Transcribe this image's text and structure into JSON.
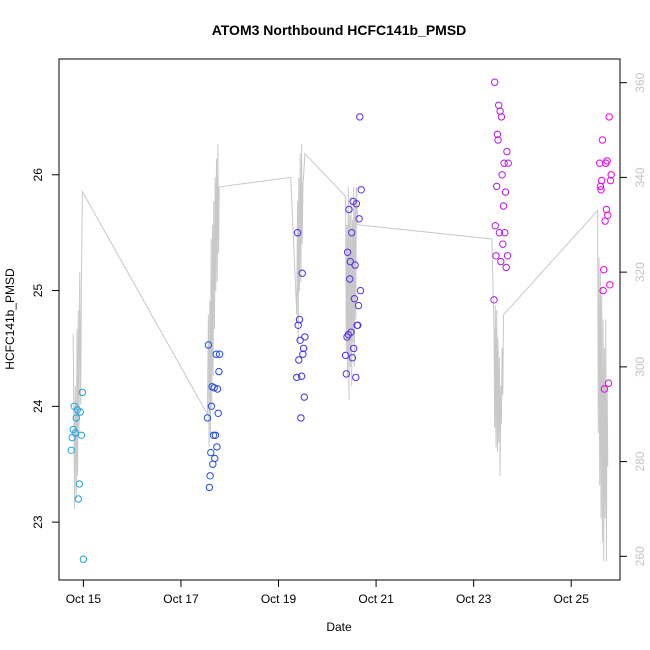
{
  "chart_data": {
    "type": "scatter",
    "title": "ATOM3 Northbound HCFC141b_PMSD",
    "xlabel": "Date",
    "ylabel": "HCFC141b_PMSD",
    "xlim": [
      "2016-10-14T12:00",
      "2016-10-26T00:00"
    ],
    "ylim": [
      22.5,
      27.0
    ],
    "y2lim": [
      255,
      365
    ],
    "x_ticks": [
      "Oct 15",
      "Oct 17",
      "Oct 19",
      "Oct 21",
      "Oct 23",
      "Oct 25"
    ],
    "x_tick_dates": [
      "2016-10-15T00:00",
      "2016-10-17T00:00",
      "2016-10-19T00:00",
      "2016-10-21T00:00",
      "2016-10-23T00:00",
      "2016-10-25T00:00"
    ],
    "y_ticks": [
      23,
      24,
      25,
      26
    ],
    "y2_ticks": [
      260,
      280,
      300,
      320,
      340,
      360
    ],
    "grid": false,
    "point_color_gradient": [
      "#1fa9e0",
      "#2233ee",
      "#8a2be2",
      "#ee00ee"
    ],
    "line_color": "#c8c8c8",
    "points": [
      {
        "x": "2016-10-14T18:00",
        "y": 23.62
      },
      {
        "x": "2016-10-14T18:30",
        "y": 23.73
      },
      {
        "x": "2016-10-14T19:00",
        "y": 23.8
      },
      {
        "x": "2016-10-14T19:30",
        "y": 24.0
      },
      {
        "x": "2016-10-14T20:00",
        "y": 23.77
      },
      {
        "x": "2016-10-14T20:30",
        "y": 23.9
      },
      {
        "x": "2016-10-14T21:00",
        "y": 23.97
      },
      {
        "x": "2016-10-14T21:30",
        "y": 23.2
      },
      {
        "x": "2016-10-14T22:00",
        "y": 23.33
      },
      {
        "x": "2016-10-14T22:30",
        "y": 23.95
      },
      {
        "x": "2016-10-14T23:00",
        "y": 23.75
      },
      {
        "x": "2016-10-14T23:30",
        "y": 24.12
      },
      {
        "x": "2016-10-15T00:00",
        "y": 22.68
      },
      {
        "x": "2016-10-17T13:00",
        "y": 23.9
      },
      {
        "x": "2016-10-17T13:30",
        "y": 24.53
      },
      {
        "x": "2016-10-17T14:00",
        "y": 23.3
      },
      {
        "x": "2016-10-17T14:20",
        "y": 23.4
      },
      {
        "x": "2016-10-17T14:40",
        "y": 23.6
      },
      {
        "x": "2016-10-17T15:00",
        "y": 24.0
      },
      {
        "x": "2016-10-17T15:20",
        "y": 24.17
      },
      {
        "x": "2016-10-17T15:40",
        "y": 23.5
      },
      {
        "x": "2016-10-17T16:00",
        "y": 23.75
      },
      {
        "x": "2016-10-17T16:20",
        "y": 24.16
      },
      {
        "x": "2016-10-17T16:40",
        "y": 23.55
      },
      {
        "x": "2016-10-17T17:00",
        "y": 23.75
      },
      {
        "x": "2016-10-17T17:20",
        "y": 24.45
      },
      {
        "x": "2016-10-17T17:40",
        "y": 23.65
      },
      {
        "x": "2016-10-17T18:00",
        "y": 24.15
      },
      {
        "x": "2016-10-17T18:20",
        "y": 23.94
      },
      {
        "x": "2016-10-17T18:40",
        "y": 24.3
      },
      {
        "x": "2016-10-17T19:00",
        "y": 24.45
      },
      {
        "x": "2016-10-19T09:00",
        "y": 24.25
      },
      {
        "x": "2016-10-19T09:20",
        "y": 25.5
      },
      {
        "x": "2016-10-19T09:40",
        "y": 24.7
      },
      {
        "x": "2016-10-19T10:00",
        "y": 24.4
      },
      {
        "x": "2016-10-19T10:20",
        "y": 24.75
      },
      {
        "x": "2016-10-19T10:40",
        "y": 24.57
      },
      {
        "x": "2016-10-19T11:00",
        "y": 23.9
      },
      {
        "x": "2016-10-19T11:20",
        "y": 24.26
      },
      {
        "x": "2016-10-19T11:40",
        "y": 25.15
      },
      {
        "x": "2016-10-19T12:00",
        "y": 24.45
      },
      {
        "x": "2016-10-19T12:20",
        "y": 24.5
      },
      {
        "x": "2016-10-19T12:40",
        "y": 24.08
      },
      {
        "x": "2016-10-19T13:00",
        "y": 24.6
      },
      {
        "x": "2016-10-20T09:00",
        "y": 24.44
      },
      {
        "x": "2016-10-20T09:20",
        "y": 24.28
      },
      {
        "x": "2016-10-20T09:40",
        "y": 24.6
      },
      {
        "x": "2016-10-20T10:00",
        "y": 25.33
      },
      {
        "x": "2016-10-20T10:20",
        "y": 24.62
      },
      {
        "x": "2016-10-20T10:40",
        "y": 25.7
      },
      {
        "x": "2016-10-20T11:00",
        "y": 25.1
      },
      {
        "x": "2016-10-20T11:20",
        "y": 25.25
      },
      {
        "x": "2016-10-20T11:40",
        "y": 24.64
      },
      {
        "x": "2016-10-20T12:00",
        "y": 25.5
      },
      {
        "x": "2016-10-20T12:20",
        "y": 24.42
      },
      {
        "x": "2016-10-20T12:40",
        "y": 25.77
      },
      {
        "x": "2016-10-20T13:00",
        "y": 24.5
      },
      {
        "x": "2016-10-20T13:20",
        "y": 24.93
      },
      {
        "x": "2016-10-20T13:40",
        "y": 25.22
      },
      {
        "x": "2016-10-20T14:00",
        "y": 24.25
      },
      {
        "x": "2016-10-20T14:20",
        "y": 25.75
      },
      {
        "x": "2016-10-20T14:40",
        "y": 24.7
      },
      {
        "x": "2016-10-20T15:00",
        "y": 24.7
      },
      {
        "x": "2016-10-20T15:20",
        "y": 24.87
      },
      {
        "x": "2016-10-20T15:40",
        "y": 25.62
      },
      {
        "x": "2016-10-20T16:00",
        "y": 26.5
      },
      {
        "x": "2016-10-20T16:20",
        "y": 25.0
      },
      {
        "x": "2016-10-20T16:40",
        "y": 25.87
      },
      {
        "x": "2016-10-23T10:00",
        "y": 24.92
      },
      {
        "x": "2016-10-23T10:20",
        "y": 26.8
      },
      {
        "x": "2016-10-23T10:40",
        "y": 25.56
      },
      {
        "x": "2016-10-23T11:00",
        "y": 25.3
      },
      {
        "x": "2016-10-23T11:20",
        "y": 25.9
      },
      {
        "x": "2016-10-23T11:40",
        "y": 26.35
      },
      {
        "x": "2016-10-23T12:00",
        "y": 26.3
      },
      {
        "x": "2016-10-23T12:20",
        "y": 26.6
      },
      {
        "x": "2016-10-23T12:40",
        "y": 25.5
      },
      {
        "x": "2016-10-23T13:00",
        "y": 26.55
      },
      {
        "x": "2016-10-23T13:20",
        "y": 25.25
      },
      {
        "x": "2016-10-23T13:40",
        "y": 26.5
      },
      {
        "x": "2016-10-23T14:00",
        "y": 26.0
      },
      {
        "x": "2016-10-23T14:20",
        "y": 25.4
      },
      {
        "x": "2016-10-23T14:40",
        "y": 25.73
      },
      {
        "x": "2016-10-23T15:00",
        "y": 26.1
      },
      {
        "x": "2016-10-23T15:20",
        "y": 25.5
      },
      {
        "x": "2016-10-23T15:40",
        "y": 25.85
      },
      {
        "x": "2016-10-23T16:00",
        "y": 25.2
      },
      {
        "x": "2016-10-23T16:20",
        "y": 26.2
      },
      {
        "x": "2016-10-23T16:40",
        "y": 25.3
      },
      {
        "x": "2016-10-23T17:00",
        "y": 26.1
      },
      {
        "x": "2016-10-25T14:00",
        "y": 26.1
      },
      {
        "x": "2016-10-25T14:20",
        "y": 25.9
      },
      {
        "x": "2016-10-25T14:40",
        "y": 25.87
      },
      {
        "x": "2016-10-25T15:00",
        "y": 25.95
      },
      {
        "x": "2016-10-25T15:20",
        "y": 26.3
      },
      {
        "x": "2016-10-25T15:40",
        "y": 25.0
      },
      {
        "x": "2016-10-25T16:00",
        "y": 25.18
      },
      {
        "x": "2016-10-25T16:20",
        "y": 24.15
      },
      {
        "x": "2016-10-25T16:40",
        "y": 25.6
      },
      {
        "x": "2016-10-25T17:00",
        "y": 26.1
      },
      {
        "x": "2016-10-25T17:20",
        "y": 25.7
      },
      {
        "x": "2016-10-25T17:40",
        "y": 26.12
      },
      {
        "x": "2016-10-25T18:00",
        "y": 25.65
      },
      {
        "x": "2016-10-25T18:20",
        "y": 24.2
      },
      {
        "x": "2016-10-25T18:40",
        "y": 26.5
      },
      {
        "x": "2016-10-25T19:00",
        "y": 25.05
      },
      {
        "x": "2016-10-25T19:20",
        "y": 25.95
      },
      {
        "x": "2016-10-25T19:40",
        "y": 26.0
      }
    ],
    "line": [
      {
        "x": "2016-10-14T19:00",
        "y2": 307
      },
      {
        "x": "2016-10-14T19:40",
        "y2": 270
      },
      {
        "x": "2016-10-14T20:00",
        "y2": 296
      },
      {
        "x": "2016-10-14T20:30",
        "y2": 272
      },
      {
        "x": "2016-10-14T20:50",
        "y2": 308
      },
      {
        "x": "2016-10-14T21:10",
        "y2": 277
      },
      {
        "x": "2016-10-14T21:30",
        "y2": 312
      },
      {
        "x": "2016-10-14T21:50",
        "y2": 286
      },
      {
        "x": "2016-10-14T22:10",
        "y2": 320
      },
      {
        "x": "2016-10-14T22:40",
        "y2": 292
      },
      {
        "x": "2016-10-14T23:00",
        "y2": 318
      },
      {
        "x": "2016-10-14T23:30",
        "y2": 337
      },
      {
        "x": "2016-10-17T13:00",
        "y2": 290
      },
      {
        "x": "2016-10-17T13:30",
        "y2": 311
      },
      {
        "x": "2016-10-17T13:50",
        "y2": 283
      },
      {
        "x": "2016-10-17T14:10",
        "y2": 314
      },
      {
        "x": "2016-10-17T14:30",
        "y2": 286
      },
      {
        "x": "2016-10-17T14:50",
        "y2": 327
      },
      {
        "x": "2016-10-17T15:10",
        "y2": 291
      },
      {
        "x": "2016-10-17T15:30",
        "y2": 330
      },
      {
        "x": "2016-10-17T15:50",
        "y2": 298
      },
      {
        "x": "2016-10-17T16:10",
        "y2": 335
      },
      {
        "x": "2016-10-17T16:30",
        "y2": 308
      },
      {
        "x": "2016-10-17T16:50",
        "y2": 340
      },
      {
        "x": "2016-10-17T17:10",
        "y2": 316
      },
      {
        "x": "2016-10-17T17:30",
        "y2": 344
      },
      {
        "x": "2016-10-17T17:50",
        "y2": 318
      },
      {
        "x": "2016-10-17T18:10",
        "y2": 347
      },
      {
        "x": "2016-10-17T18:30",
        "y2": 324
      },
      {
        "x": "2016-10-17T18:50",
        "y2": 338
      },
      {
        "x": "2016-10-19T06:00",
        "y2": 340
      },
      {
        "x": "2016-10-19T09:00",
        "y2": 311
      },
      {
        "x": "2016-10-19T09:20",
        "y2": 335
      },
      {
        "x": "2016-10-19T09:40",
        "y2": 305
      },
      {
        "x": "2016-10-19T10:00",
        "y2": 340
      },
      {
        "x": "2016-10-19T10:20",
        "y2": 316
      },
      {
        "x": "2016-10-19T10:40",
        "y2": 345
      },
      {
        "x": "2016-10-19T11:00",
        "y2": 318
      },
      {
        "x": "2016-10-19T11:20",
        "y2": 347
      },
      {
        "x": "2016-10-19T11:40",
        "y2": 326
      },
      {
        "x": "2016-10-19T12:00",
        "y2": 338
      },
      {
        "x": "2016-10-19T13:00",
        "y2": 345
      },
      {
        "x": "2016-10-20T09:00",
        "y2": 336
      },
      {
        "x": "2016-10-20T09:20",
        "y2": 303
      },
      {
        "x": "2016-10-20T09:40",
        "y2": 330
      },
      {
        "x": "2016-10-20T10:00",
        "y2": 298
      },
      {
        "x": "2016-10-20T10:20",
        "y2": 338
      },
      {
        "x": "2016-10-20T10:40",
        "y2": 293
      },
      {
        "x": "2016-10-20T11:00",
        "y2": 332
      },
      {
        "x": "2016-10-20T11:20",
        "y2": 300
      },
      {
        "x": "2016-10-20T11:40",
        "y2": 336
      },
      {
        "x": "2016-10-20T12:00",
        "y2": 296
      },
      {
        "x": "2016-10-20T12:20",
        "y2": 331
      },
      {
        "x": "2016-10-20T12:40",
        "y2": 305
      },
      {
        "x": "2016-10-20T13:00",
        "y2": 338
      },
      {
        "x": "2016-10-20T13:20",
        "y2": 300
      },
      {
        "x": "2016-10-20T13:40",
        "y2": 335
      },
      {
        "x": "2016-10-20T14:00",
        "y2": 310
      },
      {
        "x": "2016-10-20T14:20",
        "y2": 338
      },
      {
        "x": "2016-10-20T15:00",
        "y2": 330
      },
      {
        "x": "2016-10-23T09:00",
        "y2": 327
      },
      {
        "x": "2016-10-23T10:00",
        "y2": 308
      },
      {
        "x": "2016-10-23T10:20",
        "y2": 287
      },
      {
        "x": "2016-10-23T10:40",
        "y2": 313
      },
      {
        "x": "2016-10-23T11:00",
        "y2": 283
      },
      {
        "x": "2016-10-23T11:20",
        "y2": 312
      },
      {
        "x": "2016-10-23T11:40",
        "y2": 282
      },
      {
        "x": "2016-10-23T12:00",
        "y2": 306
      },
      {
        "x": "2016-10-23T12:20",
        "y2": 284
      },
      {
        "x": "2016-10-23T12:40",
        "y2": 302
      },
      {
        "x": "2016-10-23T13:00",
        "y2": 277
      },
      {
        "x": "2016-10-23T13:20",
        "y2": 296
      },
      {
        "x": "2016-10-23T13:40",
        "y2": 288
      },
      {
        "x": "2016-10-23T14:00",
        "y2": 304
      },
      {
        "x": "2016-10-23T14:20",
        "y2": 294
      },
      {
        "x": "2016-10-23T14:40",
        "y2": 311
      },
      {
        "x": "2016-10-25T13:00",
        "y2": 333
      },
      {
        "x": "2016-10-25T13:20",
        "y2": 286
      },
      {
        "x": "2016-10-25T13:40",
        "y2": 323
      },
      {
        "x": "2016-10-25T14:00",
        "y2": 275
      },
      {
        "x": "2016-10-25T14:20",
        "y2": 320
      },
      {
        "x": "2016-10-25T14:40",
        "y2": 268
      },
      {
        "x": "2016-10-25T15:00",
        "y2": 315
      },
      {
        "x": "2016-10-25T15:20",
        "y2": 263
      },
      {
        "x": "2016-10-25T15:40",
        "y2": 310
      },
      {
        "x": "2016-10-25T16:00",
        "y2": 259
      },
      {
        "x": "2016-10-25T16:20",
        "y2": 304
      },
      {
        "x": "2016-10-25T16:40",
        "y2": 268
      },
      {
        "x": "2016-10-25T17:00",
        "y2": 310
      },
      {
        "x": "2016-10-25T17:20",
        "y2": 259
      },
      {
        "x": "2016-10-25T17:40",
        "y2": 296
      },
      {
        "x": "2016-10-25T18:00",
        "y2": 279
      }
    ]
  }
}
